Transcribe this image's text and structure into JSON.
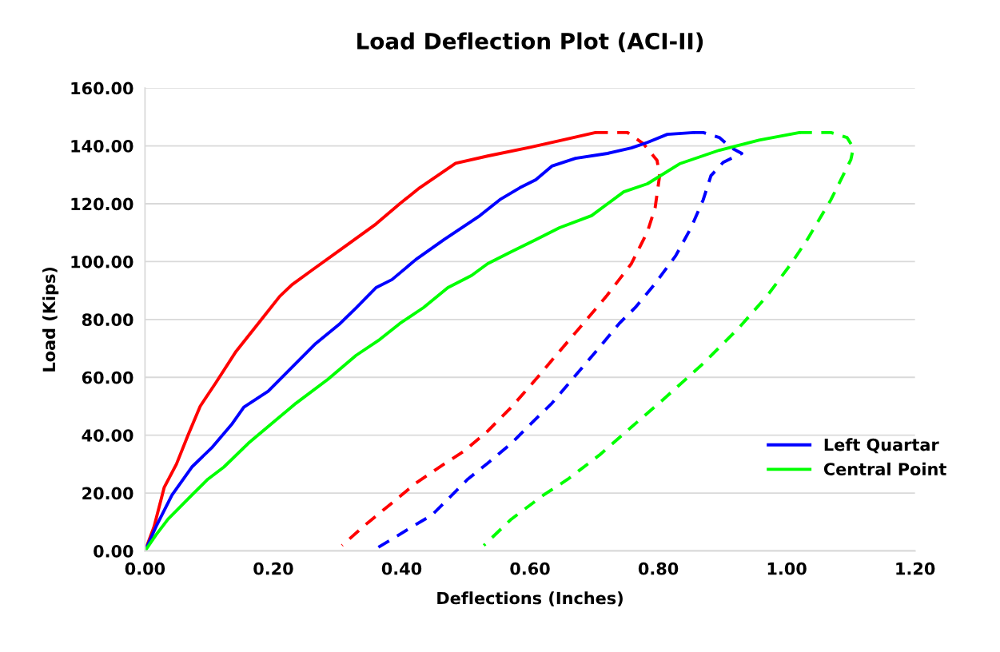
{
  "chart_data": {
    "type": "line",
    "title": "Load Deflection Plot (ACI-II)",
    "xlabel": "Deflections (Inches)",
    "ylabel": "Load (Kips)",
    "xlim": [
      0,
      1.2
    ],
    "ylim": [
      0,
      160
    ],
    "xticks": [
      {
        "value": 0,
        "label": "0.00"
      },
      {
        "value": 0.2,
        "label": "0.20"
      },
      {
        "value": 0.4,
        "label": "0.40"
      },
      {
        "value": 0.6,
        "label": "0.60"
      },
      {
        "value": 0.8,
        "label": "0.80"
      },
      {
        "value": 1.0,
        "label": "1.00"
      },
      {
        "value": 1.2,
        "label": "1.20"
      }
    ],
    "yticks": [
      {
        "value": 0,
        "label": "0.00"
      },
      {
        "value": 20,
        "label": "20.00"
      },
      {
        "value": 40,
        "label": "40.00"
      },
      {
        "value": 60,
        "label": "60.00"
      },
      {
        "value": 80,
        "label": "80.00"
      },
      {
        "value": 100,
        "label": "100.00"
      },
      {
        "value": 120,
        "label": "120.00"
      },
      {
        "value": 140,
        "label": "140.00"
      },
      {
        "value": 160,
        "label": "160.00"
      }
    ],
    "grid": "y",
    "legend": "right",
    "marker": "none",
    "series": [
      {
        "color": "#ff0000",
        "line_style": "solid",
        "x": [
          0,
          0.014,
          0.03,
          0.049,
          0.067,
          0.086,
          0.11,
          0.142,
          0.185,
          0.21,
          0.229,
          0.26,
          0.31,
          0.36,
          0.397,
          0.428,
          0.484,
          0.534,
          0.6,
          0.65,
          0.702
        ],
        "values": [
          0,
          8.3,
          22,
          30,
          40,
          50,
          58,
          69,
          81,
          88,
          92,
          97,
          105,
          113,
          120,
          125.5,
          134,
          136.5,
          139.5,
          142,
          144.6
        ]
      },
      {
        "color": "#ff0000",
        "line_style": "dashed",
        "x": [
          0.702,
          0.752,
          0.777,
          0.798,
          0.802,
          0.795,
          0.783,
          0.758,
          0.72,
          0.683,
          0.646,
          0.609,
          0.571,
          0.534,
          0.497,
          0.459,
          0.422,
          0.385,
          0.347,
          0.307
        ],
        "values": [
          144.6,
          144.6,
          140.7,
          135,
          129.7,
          118.6,
          110.3,
          99.3,
          88.3,
          78.6,
          69,
          59.3,
          49.7,
          41.4,
          34.5,
          29,
          23.4,
          16.6,
          9.7,
          1.9
        ]
      },
      {
        "name": "Left Quartar",
        "color": "#0000ff",
        "line_style": "solid",
        "x": [
          0,
          0.017,
          0.042,
          0.073,
          0.105,
          0.136,
          0.154,
          0.192,
          0.235,
          0.266,
          0.304,
          0.329,
          0.36,
          0.385,
          0.422,
          0.466,
          0.522,
          0.553,
          0.584,
          0.609,
          0.634,
          0.671,
          0.721,
          0.758,
          0.783,
          0.814,
          0.855
        ],
        "values": [
          0,
          8.3,
          19.3,
          29,
          35.9,
          44,
          49.7,
          55.2,
          64.8,
          71.7,
          78.6,
          84,
          91,
          93.8,
          100.7,
          107.6,
          115.9,
          121.4,
          125.5,
          128.3,
          133,
          135.7,
          137.4,
          139.3,
          141.2,
          144,
          144.6
        ]
      },
      {
        "color": "#0000ff",
        "line_style": "dashed",
        "x": [
          0.855,
          0.87,
          0.895,
          0.914,
          0.93,
          0.901,
          0.882,
          0.87,
          0.851,
          0.827,
          0.795,
          0.764,
          0.739,
          0.708,
          0.671,
          0.634,
          0.596,
          0.571,
          0.534,
          0.503,
          0.472,
          0.447,
          0.416,
          0.385,
          0.354
        ],
        "values": [
          144.6,
          144.6,
          142.9,
          139.3,
          137.4,
          134.3,
          129.7,
          121.4,
          111.7,
          102,
          92.4,
          84.1,
          78.6,
          70.3,
          60.7,
          51,
          42.8,
          37.2,
          30.3,
          24.8,
          17.9,
          12.4,
          8.3,
          4.1,
          0
        ]
      },
      {
        "name": "Central Point",
        "color": "#00ff00",
        "line_style": "solid",
        "x": [
          0,
          0.017,
          0.036,
          0.073,
          0.098,
          0.123,
          0.161,
          0.198,
          0.235,
          0.285,
          0.329,
          0.366,
          0.397,
          0.434,
          0.472,
          0.509,
          0.534,
          0.571,
          0.609,
          0.646,
          0.696,
          0.746,
          0.783,
          0.833,
          0.895,
          0.957,
          1.02
        ],
        "values": [
          0,
          5.5,
          11,
          19.3,
          24.8,
          29,
          37.2,
          44.1,
          51,
          59.3,
          67.6,
          73.1,
          78.6,
          84.1,
          91,
          95.2,
          99.3,
          103.4,
          107.6,
          111.7,
          115.9,
          124.1,
          126.9,
          133.8,
          138.5,
          142,
          144.6
        ]
      },
      {
        "color": "#00ff00",
        "line_style": "dashed",
        "x": [
          1.02,
          1.069,
          1.094,
          1.104,
          1.1,
          1.069,
          1.032,
          1.007,
          0.97,
          0.926,
          0.87,
          0.808,
          0.758,
          0.708,
          0.659,
          0.621,
          0.571,
          0.528
        ],
        "values": [
          144.6,
          144.6,
          142.9,
          139.3,
          135.2,
          121.4,
          107.6,
          99.3,
          88.3,
          77.2,
          64.8,
          52.4,
          42.8,
          33.1,
          24.8,
          19.3,
          11,
          1.9
        ]
      }
    ]
  }
}
